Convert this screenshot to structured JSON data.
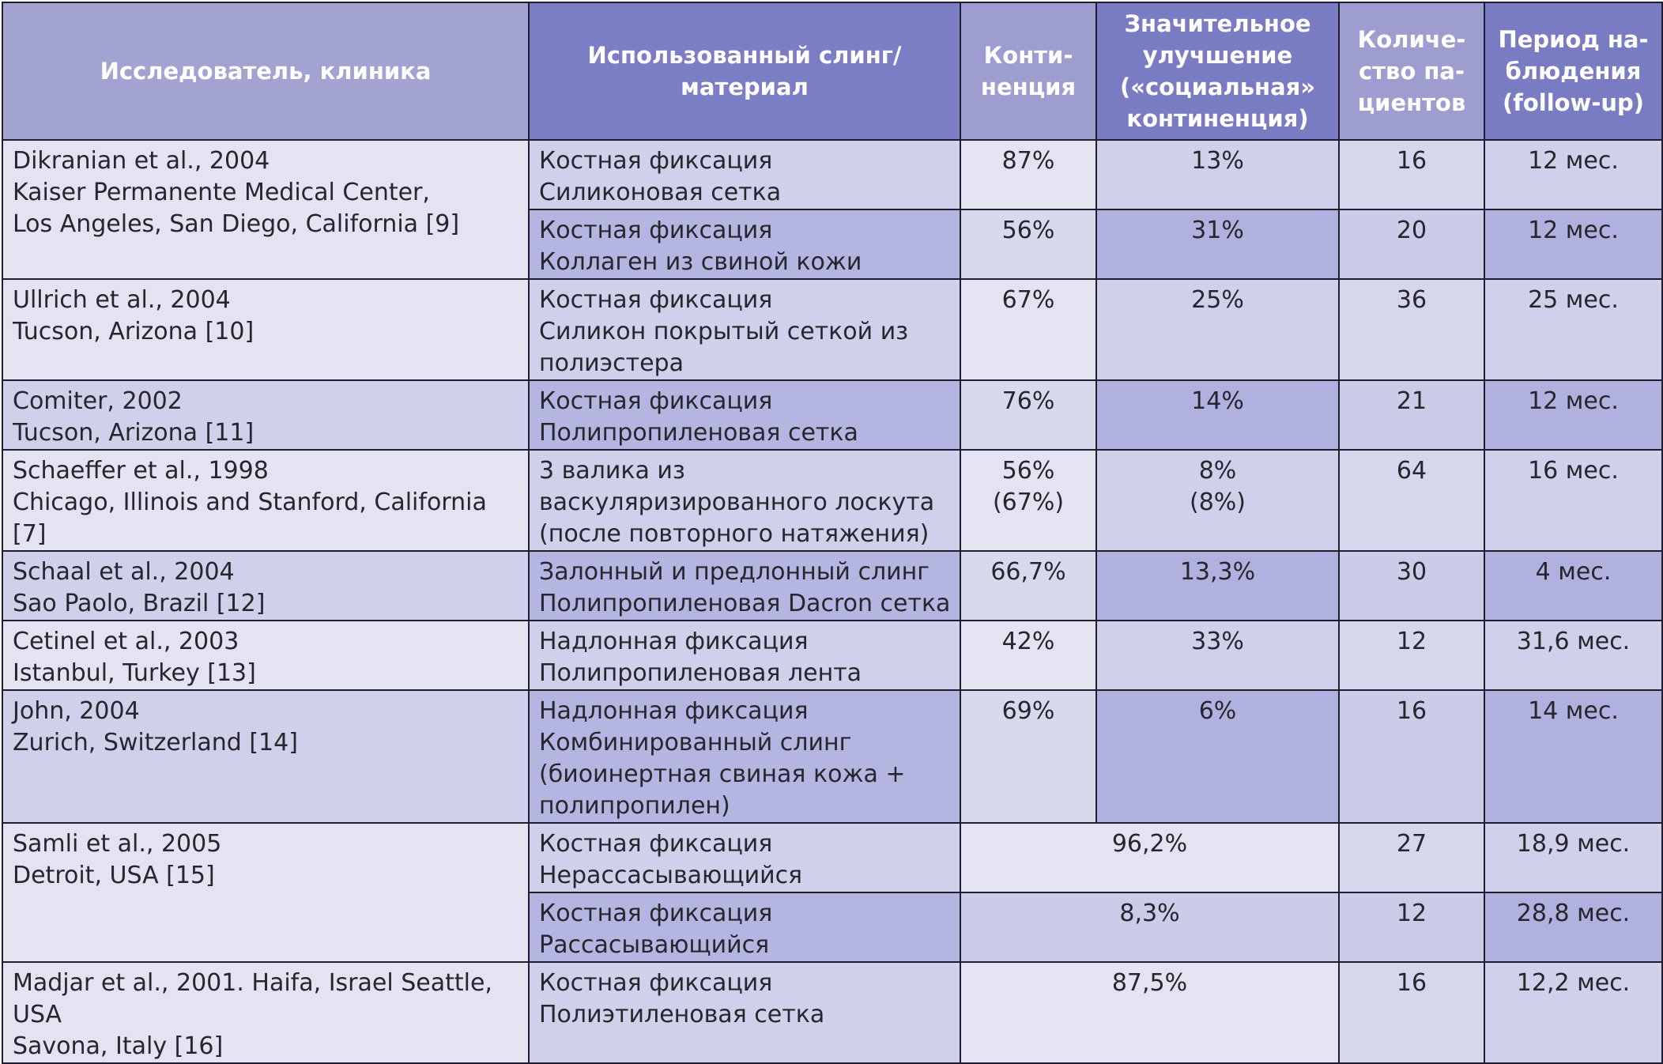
{
  "headers": {
    "researcher": "Исследователь, клиника",
    "sling": [
      "Использованный слинг/",
      "материал"
    ],
    "continence": [
      "Конти-",
      "ненция"
    ],
    "improvement": [
      "Значительное",
      "улучшение",
      "(«социальная»",
      "континенция)"
    ],
    "patients": [
      "Количе-",
      "ство па-",
      "циентов"
    ],
    "followup": [
      "Период на-",
      "блюдения",
      "(follow-up)"
    ]
  },
  "rows": [
    {
      "researcher": [
        "Dikranian et al., 2004",
        "Kaiser Permanente Medical Center,",
        "Los Angeles, San Diego, California [9]"
      ],
      "sling": [
        "Костная фиксация",
        "Силиконовая сетка"
      ],
      "continence": [
        "87%"
      ],
      "improvement": [
        "13%"
      ],
      "patients": "16",
      "followup": "12 мес."
    },
    {
      "sling": [
        "Костная фиксация",
        "Коллаген из свиной кожи"
      ],
      "continence": [
        "56%"
      ],
      "improvement": [
        "31%"
      ],
      "patients": "20",
      "followup": "12 мес."
    },
    {
      "researcher": [
        "Ullrich et al., 2004",
        "Tucson, Arizona [10]"
      ],
      "sling": [
        "Костная фиксация",
        "Силикон покрытый сеткой из",
        "полиэстера"
      ],
      "continence": [
        "67%"
      ],
      "improvement": [
        "25%"
      ],
      "patients": "36",
      "followup": "25 мес."
    },
    {
      "researcher": [
        "Comiter, 2002",
        "Tucson, Arizona [11]"
      ],
      "sling": [
        "Костная фиксация",
        "Полипропиленовая сетка"
      ],
      "continence": [
        "76%"
      ],
      "improvement": [
        "14%"
      ],
      "patients": "21",
      "followup": "12 мес."
    },
    {
      "researcher": [
        "Schaeffer et al., 1998",
        "Chicago, Illinois and Stanford, California [7]"
      ],
      "sling": [
        "3 валика из",
        "васкуляризированного лоскута",
        "(после повторного натяжения)"
      ],
      "continence": [
        "56%",
        "(67%)"
      ],
      "improvement": [
        "8%",
        "(8%)"
      ],
      "patients": "64",
      "followup": "16 мес."
    },
    {
      "researcher": [
        "Schaal et al., 2004",
        "Sao Paolo, Brazil [12]"
      ],
      "sling": [
        "Залонный и предлонный слинг",
        "Полипропиленовая Dacron сетка"
      ],
      "continence": [
        "66,7%"
      ],
      "improvement": [
        "13,3%"
      ],
      "patients": "30",
      "followup": "4 мес."
    },
    {
      "researcher": [
        "Cetinel et al., 2003",
        "Istanbul, Turkey [13]"
      ],
      "sling": [
        "Надлонная фиксация",
        "Полипропиленовая лента"
      ],
      "continence": [
        "42%"
      ],
      "improvement": [
        "33%"
      ],
      "patients": "12",
      "followup": "31,6 мес."
    },
    {
      "researcher": [
        "John, 2004",
        "Zurich, Switzerland [14]"
      ],
      "sling": [
        "Надлонная фиксация",
        "Комбинированный слинг",
        "(биоинертная свиная кожа +",
        "полипропилен)"
      ],
      "continence": [
        "69%"
      ],
      "improvement": [
        "6%"
      ],
      "patients": "16",
      "followup": "14 мес."
    },
    {
      "researcher": [
        "Samli et al., 2005",
        "Detroit, USA [15]"
      ],
      "sling": [
        "Костная фиксация",
        "Нерассасывающийся"
      ],
      "merged": "96,2%",
      "patients": "27",
      "followup": "18,9 мес."
    },
    {
      "sling": [
        "Костная фиксация",
        "Рассасывающийся"
      ],
      "merged": "8,3%",
      "patients": "12",
      "followup": "28,8 мес."
    },
    {
      "researcher": [
        "Madjar et al., 2001. Haifa, Israel Seattle, USA",
        "Savona, Italy [16]"
      ],
      "sling": [
        "Костная фиксация",
        "Полиэтиленовая сетка"
      ],
      "merged": "87,5%",
      "patients": "16",
      "followup": "12,2 мес."
    }
  ]
}
